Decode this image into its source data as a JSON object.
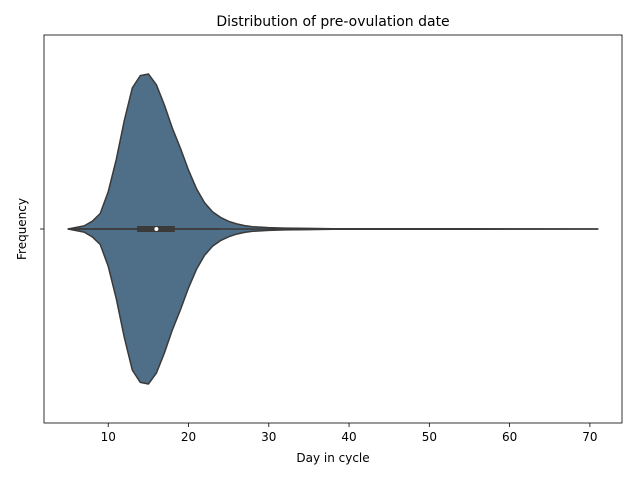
{
  "chart_data": {
    "type": "violin",
    "title": "Distribution of pre-ovulation date",
    "xlabel": "Day in cycle",
    "ylabel": "Frequency",
    "xlim": [
      2,
      74
    ],
    "xticks": [
      10,
      20,
      30,
      40,
      50,
      60,
      70
    ],
    "y_category_tick": "",
    "color": "#4f6e87",
    "edge_color": "#3a3a3a",
    "density": {
      "x": [
        5,
        7,
        8,
        9,
        10,
        11,
        12,
        13,
        14,
        15,
        16,
        17,
        18,
        19,
        20,
        21,
        22,
        23,
        24,
        25,
        26,
        27,
        28,
        30,
        32,
        35,
        38,
        45,
        55,
        71
      ],
      "width": [
        0.0,
        0.02,
        0.05,
        0.1,
        0.24,
        0.45,
        0.7,
        0.91,
        0.99,
        1.0,
        0.93,
        0.8,
        0.65,
        0.52,
        0.38,
        0.26,
        0.17,
        0.11,
        0.075,
        0.05,
        0.033,
        0.022,
        0.015,
        0.009,
        0.006,
        0.004,
        0.002,
        0.001,
        0.001,
        0.0
      ]
    },
    "box": {
      "q1": 13.6,
      "median": 16,
      "q3": 18.3,
      "whisker_low": 5,
      "whisker_high": 24
    },
    "range_line": [
      5,
      71
    ]
  }
}
